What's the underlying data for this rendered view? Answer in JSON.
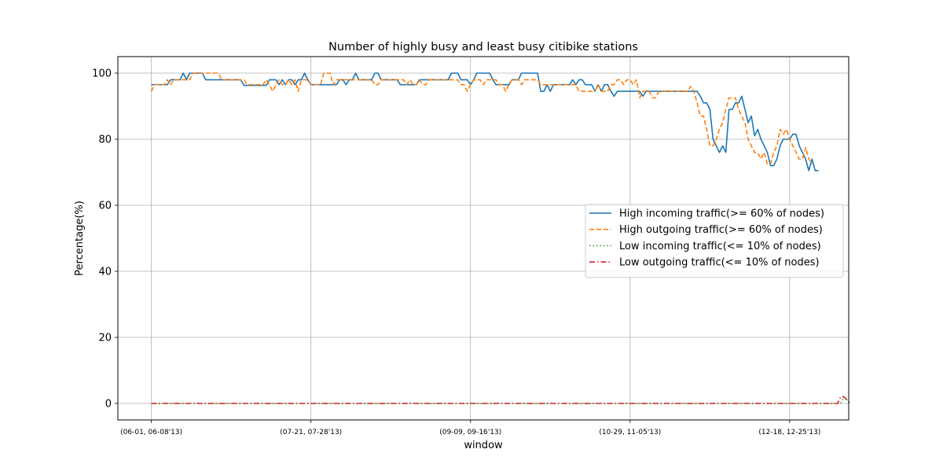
{
  "chart_data": {
    "type": "line",
    "title": "Number of highly busy and least busy citibike stations",
    "xlabel": "window",
    "ylabel": "Percentage(%)",
    "ylim": [
      -5,
      105
    ],
    "yticks": [
      0,
      20,
      40,
      60,
      80,
      100
    ],
    "xticks": [
      {
        "label": "(06-01, 06-08'13)",
        "index": 0
      },
      {
        "label": "(07-21, 07-28'13)",
        "index": 50
      },
      {
        "label": "(09-09, 09-16'13)",
        "index": 100
      },
      {
        "label": "(10-29, 11-05'13)",
        "index": 150
      },
      {
        "label": "(12-18, 12-25'13)",
        "index": 200
      }
    ],
    "xlim": [
      -10.5,
      218.5
    ],
    "grid": true,
    "legend_position": "center-right",
    "series": [
      {
        "name": "High incoming traffic(>= 60% of nodes)",
        "color": "#1f77b4",
        "style": "solid",
        "x_start": 0,
        "values": [
          96.5,
          96.5,
          96.5,
          96.5,
          96.5,
          96.5,
          98,
          98,
          98,
          98,
          100,
          98,
          100,
          100,
          100,
          100,
          100,
          98,
          98,
          98,
          98,
          98,
          98,
          98,
          98,
          98,
          98,
          98,
          98,
          96.3,
          96.3,
          96.3,
          96.3,
          96.3,
          96.3,
          96.3,
          96.3,
          98,
          98,
          98,
          96.5,
          98,
          96.5,
          98,
          98,
          96.5,
          98,
          98,
          100,
          98,
          96.5,
          96.5,
          96.5,
          96.5,
          96.5,
          96.5,
          96.5,
          96.5,
          96.5,
          98,
          98,
          96.5,
          98,
          98,
          100,
          98,
          98,
          98,
          98,
          98,
          100,
          100,
          98,
          98,
          98,
          98,
          98,
          98,
          96.5,
          96.5,
          96.5,
          96.5,
          96.5,
          96.5,
          98,
          98,
          98,
          98,
          98,
          98,
          98,
          98,
          98,
          98,
          100,
          100,
          100,
          98,
          98,
          98,
          96.5,
          98,
          100,
          100,
          100,
          100,
          100,
          98,
          96.5,
          96.5,
          96.5,
          96.5,
          96.5,
          98,
          98,
          98,
          100,
          100,
          100,
          100,
          100,
          100,
          94.5,
          94.5,
          96.5,
          94.5,
          96.5,
          96.5,
          96.5,
          96.5,
          96.5,
          96.5,
          98,
          96.5,
          98,
          98,
          96.5,
          96.5,
          96.5,
          94.5,
          96.5,
          94.5,
          96.5,
          96.5,
          94.5,
          93,
          94.5,
          94.5,
          94.5,
          94.5,
          94.5,
          94.5,
          94.5,
          94.5,
          93,
          94.5,
          94.5,
          94.5,
          94.5,
          94.5,
          94.5,
          94.5,
          94.5,
          94.5,
          94.5,
          94.5,
          94.5,
          94.5,
          94.5,
          94.5,
          94.5,
          94.5,
          93,
          91,
          91,
          89,
          80,
          78,
          76,
          78,
          76,
          89,
          89,
          91,
          91,
          93,
          89,
          85,
          87,
          81,
          83,
          80,
          78,
          76,
          72,
          72,
          74,
          78,
          80,
          80,
          80,
          81.5,
          81.5,
          78,
          76,
          74,
          70.5,
          74,
          70.5,
          70.5
        ]
      },
      {
        "name": "High outgoing traffic(>= 60% of nodes)",
        "color": "#ff7f0e",
        "style": "dashed",
        "x_start": 0,
        "values": [
          94.5,
          96.5,
          96.5,
          96.5,
          96.5,
          98,
          96.5,
          98,
          98,
          98,
          98,
          98,
          98,
          100,
          100,
          100,
          100,
          100,
          100,
          100,
          100,
          100,
          98,
          98,
          98,
          98,
          98,
          98,
          98,
          98,
          96.5,
          96.5,
          96.5,
          96.5,
          96.5,
          96.5,
          98,
          96.5,
          94.5,
          96.5,
          98,
          96.5,
          96.5,
          98,
          96.5,
          98,
          94.5,
          98,
          98,
          98,
          96.5,
          96.5,
          96.5,
          96.5,
          100,
          100,
          100,
          96.5,
          98,
          98,
          98,
          98,
          98,
          98,
          98,
          98,
          98,
          98,
          98,
          98,
          96.5,
          96.5,
          98,
          98,
          98,
          98,
          98,
          98,
          98,
          98,
          96.5,
          98,
          96.5,
          96.5,
          98,
          96.5,
          96.5,
          98,
          98,
          98,
          98,
          98,
          98,
          98,
          98,
          98,
          98,
          96.5,
          96.5,
          94.5,
          96.5,
          98,
          98,
          98,
          96.5,
          98,
          98,
          98,
          98,
          96.5,
          96.5,
          94.5,
          96.5,
          98,
          98,
          98,
          96.5,
          98,
          98,
          98,
          98,
          98,
          96.5,
          96.5,
          96.5,
          96.5,
          96.5,
          96.5,
          96.5,
          96.5,
          96.5,
          96.5,
          96.5,
          96.5,
          94.5,
          94.5,
          94.5,
          94.5,
          94.5,
          94.5,
          96.5,
          94.5,
          94.5,
          94.5,
          96.5,
          96.5,
          98,
          98,
          96.5,
          98,
          98,
          96.5,
          98,
          92.5,
          94.5,
          94.5,
          94.5,
          92.5,
          92.5,
          94.5,
          94.5,
          94.5,
          94.5,
          94.5,
          94.5,
          94.5,
          94.5,
          94.5,
          94.5,
          96,
          94.5,
          91,
          87,
          87,
          83,
          78,
          78,
          80,
          83,
          85,
          89,
          92.5,
          92.5,
          92.5,
          89,
          87,
          85,
          80,
          78,
          76,
          76,
          74,
          76,
          72.5,
          72.5,
          76,
          78,
          83,
          81.5,
          83,
          80,
          78,
          76,
          74,
          74,
          77.5,
          74,
          72.5
        ]
      },
      {
        "name": "Low incoming traffic(<= 10% of nodes)",
        "color": "#2ca02c",
        "style": "dotted",
        "x_start": 0,
        "values": [
          0,
          0,
          0,
          0,
          0,
          0,
          0,
          0,
          0,
          0,
          0,
          0,
          0,
          0,
          0,
          0,
          0,
          0,
          0,
          0,
          0,
          0,
          0,
          0,
          0,
          0,
          0,
          0,
          0,
          0,
          0,
          0,
          0,
          0,
          0,
          0,
          0,
          0,
          0,
          0,
          0,
          0,
          0,
          0,
          0,
          0,
          0,
          0,
          0,
          0,
          0,
          0,
          0,
          0,
          0,
          0,
          0,
          0,
          0,
          0,
          0,
          0,
          0,
          0,
          0,
          0,
          0,
          0,
          0,
          0,
          0,
          0,
          0,
          0,
          0,
          0,
          0,
          0,
          0,
          0,
          0,
          0,
          0,
          0,
          0,
          0,
          0,
          0,
          0,
          0,
          0,
          0,
          0,
          0,
          0,
          0,
          0,
          0,
          0,
          0,
          0,
          0,
          0,
          0,
          0,
          0,
          0,
          0,
          0,
          0,
          0,
          0,
          0,
          0,
          0,
          0,
          0,
          0,
          0,
          0,
          0,
          0,
          0,
          0,
          0,
          0,
          0,
          0,
          0,
          0,
          0,
          0,
          0,
          0,
          0,
          0,
          0,
          0,
          0,
          0,
          0,
          0,
          0,
          0,
          0,
          0,
          0,
          0,
          0,
          0,
          0,
          0,
          0,
          0,
          0,
          0,
          0,
          0,
          0,
          0,
          0,
          0,
          0,
          0,
          0,
          0,
          0,
          0,
          0,
          0,
          0,
          0,
          0,
          0,
          0,
          0,
          0,
          0,
          0,
          0,
          0,
          0,
          0,
          0,
          0,
          0,
          0,
          0,
          0,
          0,
          0,
          0,
          0,
          0,
          0,
          0,
          0,
          0,
          0,
          0,
          0,
          0,
          0,
          0,
          0,
          0,
          0,
          0,
          0,
          0,
          0,
          0,
          0,
          0,
          0,
          0,
          0,
          2,
          1,
          0
        ]
      },
      {
        "name": "Low outgoing traffic(<= 10% of nodes)",
        "color": "#d62728",
        "style": "dashdot",
        "x_start": 0,
        "values": [
          0,
          0,
          0,
          0,
          0,
          0,
          0,
          0,
          0,
          0,
          0,
          0,
          0,
          0,
          0,
          0,
          0,
          0,
          0,
          0,
          0,
          0,
          0,
          0,
          0,
          0,
          0,
          0,
          0,
          0,
          0,
          0,
          0,
          0,
          0,
          0,
          0,
          0,
          0,
          0,
          0,
          0,
          0,
          0,
          0,
          0,
          0,
          0,
          0,
          0,
          0,
          0,
          0,
          0,
          0,
          0,
          0,
          0,
          0,
          0,
          0,
          0,
          0,
          0,
          0,
          0,
          0,
          0,
          0,
          0,
          0,
          0,
          0,
          0,
          0,
          0,
          0,
          0,
          0,
          0,
          0,
          0,
          0,
          0,
          0,
          0,
          0,
          0,
          0,
          0,
          0,
          0,
          0,
          0,
          0,
          0,
          0,
          0,
          0,
          0,
          0,
          0,
          0,
          0,
          0,
          0,
          0,
          0,
          0,
          0,
          0,
          0,
          0,
          0,
          0,
          0,
          0,
          0,
          0,
          0,
          0,
          0,
          0,
          0,
          0,
          0,
          0,
          0,
          0,
          0,
          0,
          0,
          0,
          0,
          0,
          0,
          0,
          0,
          0,
          0,
          0,
          0,
          0,
          0,
          0,
          0,
          0,
          0,
          0,
          0,
          0,
          0,
          0,
          0,
          0,
          0,
          0,
          0,
          0,
          0,
          0,
          0,
          0,
          0,
          0,
          0,
          0,
          0,
          0,
          0,
          0,
          0,
          0,
          0,
          0,
          0,
          0,
          0,
          0,
          0,
          0,
          0,
          0,
          0,
          0,
          0,
          0,
          0,
          0,
          0,
          0,
          0,
          0,
          0,
          0,
          0,
          0,
          0,
          0,
          0,
          0,
          0,
          0,
          0,
          0,
          0,
          0,
          0,
          0,
          0,
          0,
          0,
          0,
          0,
          0,
          0,
          2,
          2,
          1,
          0
        ]
      }
    ]
  }
}
